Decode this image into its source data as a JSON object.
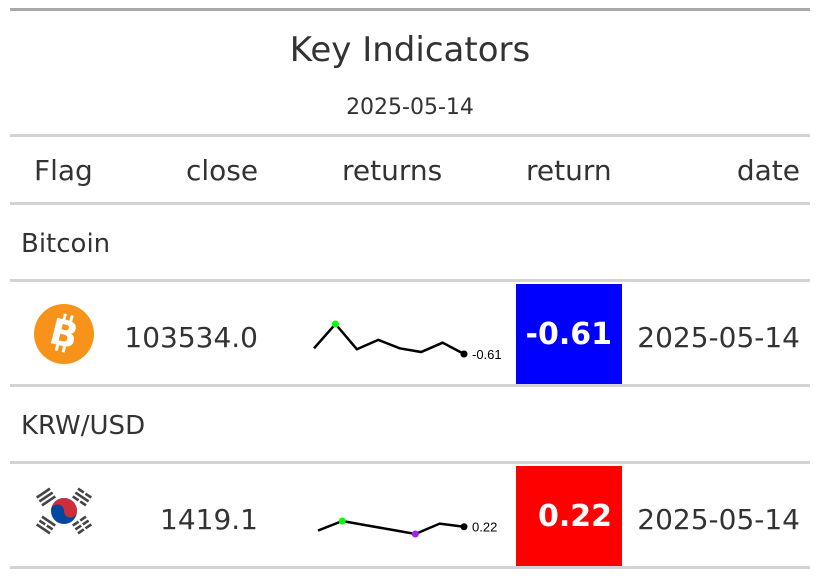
{
  "header": {
    "title": "Key Indicators",
    "subtitle": "2025-05-14"
  },
  "columns": {
    "flag": "Flag",
    "close": "close",
    "returns": "returns",
    "return": "return",
    "date": "date"
  },
  "rows": [
    {
      "group": "Bitcoin",
      "flag_icon": "bitcoin-logo",
      "close": "103534.0",
      "spark_values": [
        0.0,
        2.6,
        -0.1,
        0.9,
        0.0,
        -0.4,
        0.6,
        -0.61
      ],
      "spark_label": "-0.61",
      "return": "-0.61",
      "return_color": "#0000ff",
      "date": "2025-05-14"
    },
    {
      "group": "KRW/USD",
      "flag_icon": "south-korea-flag",
      "close": "1419.1",
      "spark_values": [
        0.0,
        0.55,
        0.3,
        0.05,
        -0.2,
        0.4,
        0.22
      ],
      "spark_label": "0.22",
      "return": "0.22",
      "return_color": "#ff0000",
      "date": "2025-05-14"
    }
  ],
  "colors": {
    "rule": "#d3d3d3",
    "text": "#333333",
    "spark_max": "#00ff00",
    "spark_min": "#a020f0"
  }
}
